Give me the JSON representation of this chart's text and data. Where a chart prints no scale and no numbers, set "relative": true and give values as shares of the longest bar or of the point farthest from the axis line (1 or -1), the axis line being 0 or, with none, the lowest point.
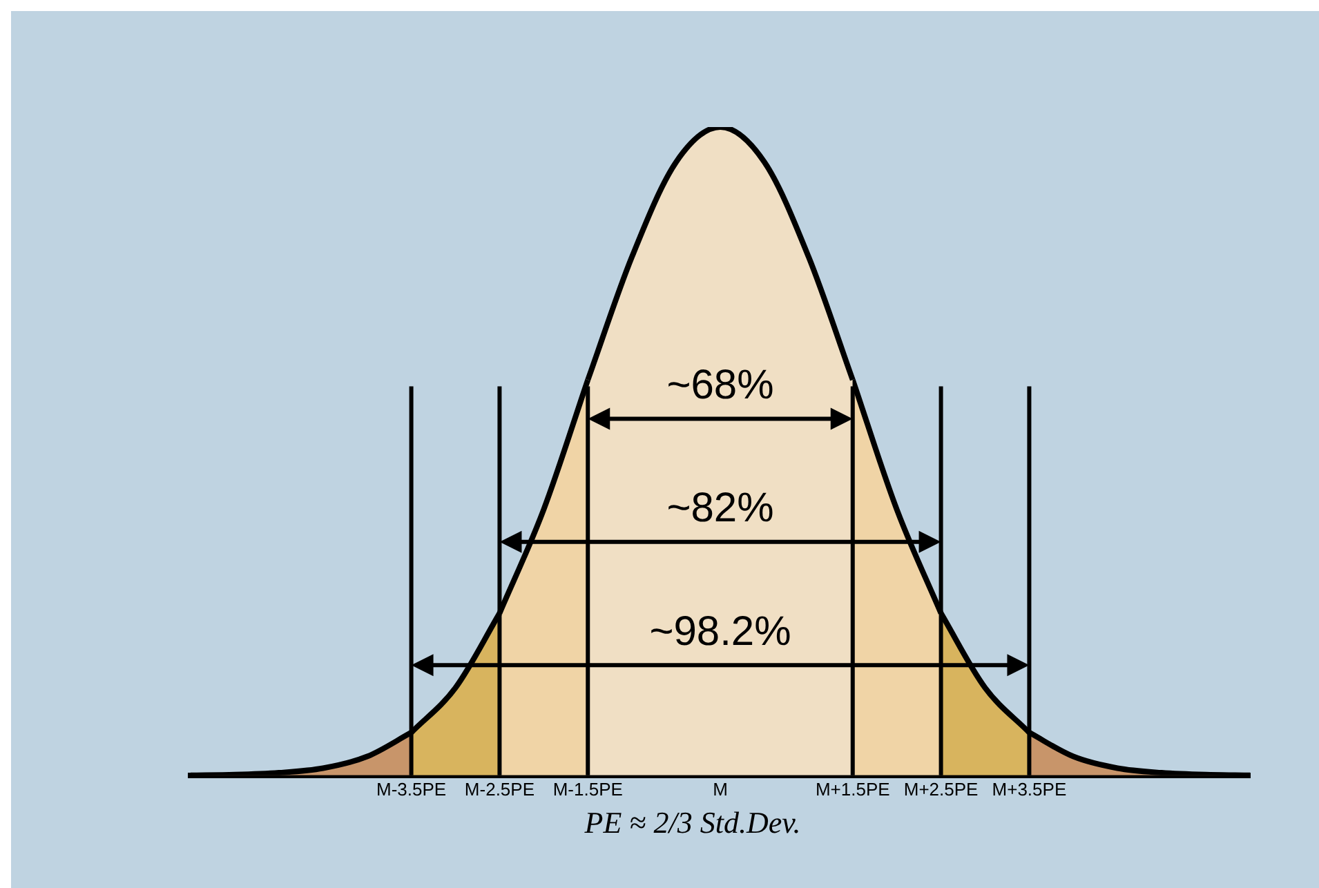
{
  "chart_data": {
    "type": "area",
    "relative": true,
    "legend": false,
    "grid": false,
    "categories": [
      null,
      null,
      null,
      null,
      null,
      "M-3.5PE",
      null,
      "M-2.5PE",
      null,
      "M-1.5PE",
      null,
      null,
      "M",
      null,
      null,
      "M+1.5PE",
      null,
      "M+2.5PE",
      null,
      "M+3.5PE",
      null,
      null,
      null,
      null,
      null
    ],
    "series": [
      {
        "color": "#c8956a",
        "values": [
          0,
          0.001,
          0.004,
          0.011,
          0.029,
          0.066,
          null,
          null,
          null,
          null,
          null,
          null,
          null,
          null,
          null,
          null,
          null,
          null,
          null,
          null,
          null,
          null,
          null,
          null,
          null
        ]
      },
      {
        "color": "#d8b45e",
        "values": [
          null,
          null,
          null,
          null,
          null,
          0.066,
          0.135,
          0.25,
          null,
          null,
          null,
          null,
          null,
          null,
          null,
          null,
          null,
          null,
          null,
          null,
          null,
          null,
          null,
          null,
          null
        ]
      },
      {
        "color": "#f0d4a6",
        "values": [
          null,
          null,
          null,
          null,
          null,
          null,
          null,
          0.25,
          0.41,
          0.61,
          null,
          null,
          null,
          null,
          null,
          null,
          null,
          null,
          null,
          null,
          null,
          null,
          null,
          null,
          null
        ]
      },
      {
        "color": "#f0dfc4",
        "values": [
          null,
          null,
          null,
          null,
          null,
          null,
          null,
          null,
          null,
          0.61,
          0.8,
          0.946,
          1,
          0.946,
          0.8,
          0.61,
          null,
          null,
          null,
          null,
          null,
          null,
          null,
          null,
          null
        ]
      },
      {
        "color": "#f0d4a6",
        "values": [
          null,
          null,
          null,
          null,
          null,
          null,
          null,
          null,
          null,
          null,
          null,
          null,
          null,
          null,
          null,
          0.61,
          0.41,
          0.25,
          null,
          null,
          null,
          null,
          null,
          null,
          null
        ]
      },
      {
        "color": "#d8b45e",
        "values": [
          null,
          null,
          null,
          null,
          null,
          null,
          null,
          null,
          null,
          null,
          null,
          null,
          null,
          null,
          null,
          null,
          null,
          0.25,
          0.135,
          0.066,
          null,
          null,
          null,
          null,
          null
        ]
      },
      {
        "color": "#c8956a",
        "values": [
          null,
          null,
          null,
          null,
          null,
          null,
          null,
          null,
          null,
          null,
          null,
          null,
          null,
          null,
          null,
          null,
          null,
          null,
          null,
          0.066,
          0.029,
          0.011,
          0.004,
          0.001,
          0
        ]
      }
    ],
    "ref_lines": [
      {
        "axis": "x",
        "value": "M-3.5PE"
      },
      {
        "axis": "x",
        "value": "M-2.5PE"
      },
      {
        "axis": "x",
        "value": "M-1.5PE"
      },
      {
        "axis": "x",
        "value": "M+1.5PE"
      },
      {
        "axis": "x",
        "value": "M+2.5PE"
      },
      {
        "axis": "x",
        "value": "M+3.5PE"
      }
    ],
    "annotations": [
      "~68%",
      "~82%",
      "~98.2%",
      "PE ≈ 2/3 Std.Dev."
    ]
  }
}
